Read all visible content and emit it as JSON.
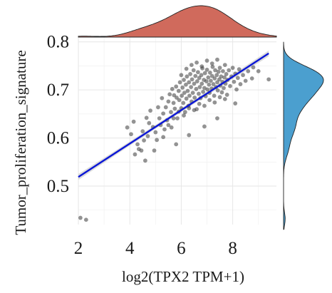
{
  "chart_data": {
    "type": "scatter",
    "xlabel": "log2(TPX2 TPM+1)",
    "ylabel": "Tumor_proliferation_signature",
    "xlim": [
      2,
      9.7
    ],
    "ylim": [
      0.42,
      0.81
    ],
    "x_ticks": [
      2,
      4,
      6,
      8
    ],
    "y_ticks": [
      0.5,
      0.6,
      0.7,
      0.8
    ],
    "grid": true,
    "regression": {
      "start": [
        2,
        0.519
      ],
      "end": [
        9.4,
        0.776
      ],
      "color": "#0a16d6",
      "band": "#d0d0d0"
    },
    "marginal_x": {
      "type": "density",
      "fill": "#d06a5c",
      "peak_x": 6.4
    },
    "marginal_y": {
      "type": "density",
      "fill": "#4b9fcf",
      "peak_y": 0.693
    },
    "point_color": "#3a3a3a",
    "points": [
      [
        2.08,
        0.434
      ],
      [
        2.3,
        0.43
      ],
      [
        3.9,
        0.622
      ],
      [
        4.05,
        0.608
      ],
      [
        4.15,
        0.634
      ],
      [
        4.3,
        0.587
      ],
      [
        4.2,
        0.566
      ],
      [
        4.35,
        0.577
      ],
      [
        4.45,
        0.574
      ],
      [
        4.5,
        0.614
      ],
      [
        4.55,
        0.595
      ],
      [
        4.7,
        0.604
      ],
      [
        4.65,
        0.642
      ],
      [
        4.8,
        0.657
      ],
      [
        4.75,
        0.631
      ],
      [
        4.9,
        0.623
      ],
      [
        4.95,
        0.574
      ],
      [
        5.05,
        0.596
      ],
      [
        5.0,
        0.612
      ],
      [
        5.1,
        0.664
      ],
      [
        5.15,
        0.641
      ],
      [
        5.2,
        0.627
      ],
      [
        5.25,
        0.683
      ],
      [
        5.3,
        0.651
      ],
      [
        5.35,
        0.618
      ],
      [
        5.4,
        0.664
      ],
      [
        5.45,
        0.637
      ],
      [
        5.5,
        0.676
      ],
      [
        5.55,
        0.691
      ],
      [
        5.6,
        0.654
      ],
      [
        5.62,
        0.622
      ],
      [
        5.65,
        0.702
      ],
      [
        5.7,
        0.673
      ],
      [
        5.72,
        0.689
      ],
      [
        5.75,
        0.661
      ],
      [
        5.8,
        0.707
      ],
      [
        5.82,
        0.684
      ],
      [
        5.85,
        0.641
      ],
      [
        5.9,
        0.698
      ],
      [
        5.92,
        0.679
      ],
      [
        5.95,
        0.716
      ],
      [
        6.0,
        0.662
      ],
      [
        6.02,
        0.688
      ],
      [
        6.05,
        0.705
      ],
      [
        6.08,
        0.673
      ],
      [
        6.1,
        0.721
      ],
      [
        6.12,
        0.694
      ],
      [
        6.15,
        0.654
      ],
      [
        6.18,
        0.711
      ],
      [
        6.2,
        0.682
      ],
      [
        6.22,
        0.728
      ],
      [
        6.25,
        0.698
      ],
      [
        6.28,
        0.667
      ],
      [
        6.3,
        0.716
      ],
      [
        6.32,
        0.688
      ],
      [
        6.35,
        0.733
      ],
      [
        6.38,
        0.706
      ],
      [
        6.4,
        0.676
      ],
      [
        6.42,
        0.722
      ],
      [
        6.45,
        0.694
      ],
      [
        6.48,
        0.741
      ],
      [
        6.5,
        0.713
      ],
      [
        6.52,
        0.684
      ],
      [
        6.55,
        0.729
      ],
      [
        6.58,
        0.702
      ],
      [
        6.6,
        0.66
      ],
      [
        6.62,
        0.718
      ],
      [
        6.65,
        0.737
      ],
      [
        6.68,
        0.692
      ],
      [
        6.7,
        0.725
      ],
      [
        6.72,
        0.706
      ],
      [
        6.75,
        0.683
      ],
      [
        6.78,
        0.731
      ],
      [
        6.8,
        0.713
      ],
      [
        6.82,
        0.745
      ],
      [
        6.85,
        0.696
      ],
      [
        6.88,
        0.721
      ],
      [
        6.9,
        0.704
      ],
      [
        6.92,
        0.735
      ],
      [
        6.95,
        0.687
      ],
      [
        6.98,
        0.718
      ],
      [
        7.0,
        0.742
      ],
      [
        7.02,
        0.701
      ],
      [
        7.05,
        0.726
      ],
      [
        7.08,
        0.711
      ],
      [
        7.1,
        0.694
      ],
      [
        7.12,
        0.736
      ],
      [
        7.15,
        0.719
      ],
      [
        7.18,
        0.703
      ],
      [
        7.2,
        0.729
      ],
      [
        7.22,
        0.748
      ],
      [
        7.25,
        0.712
      ],
      [
        7.28,
        0.688
      ],
      [
        7.3,
        0.724
      ],
      [
        7.32,
        0.741
      ],
      [
        7.35,
        0.706
      ],
      [
        7.38,
        0.731
      ],
      [
        7.4,
        0.716
      ],
      [
        7.42,
        0.699
      ],
      [
        7.45,
        0.738
      ],
      [
        7.48,
        0.722
      ],
      [
        7.5,
        0.746
      ],
      [
        7.52,
        0.709
      ],
      [
        7.55,
        0.728
      ],
      [
        7.58,
        0.695
      ],
      [
        7.6,
        0.717
      ],
      [
        7.62,
        0.739
      ],
      [
        7.65,
        0.704
      ],
      [
        7.68,
        0.726
      ],
      [
        7.7,
        0.752
      ],
      [
        7.72,
        0.713
      ],
      [
        7.75,
        0.733
      ],
      [
        7.78,
        0.69
      ],
      [
        7.8,
        0.721
      ],
      [
        7.85,
        0.741
      ],
      [
        7.9,
        0.708
      ],
      [
        7.95,
        0.728
      ],
      [
        8.0,
        0.746
      ],
      [
        8.05,
        0.717
      ],
      [
        8.1,
        0.734
      ],
      [
        8.15,
        0.701
      ],
      [
        8.2,
        0.725
      ],
      [
        8.25,
        0.743
      ],
      [
        8.3,
        0.712
      ],
      [
        8.4,
        0.731
      ],
      [
        8.5,
        0.719
      ],
      [
        8.6,
        0.739
      ],
      [
        8.75,
        0.724
      ],
      [
        9.0,
        0.739
      ],
      [
        9.4,
        0.722
      ],
      [
        5.3,
        0.602
      ],
      [
        5.5,
        0.627
      ],
      [
        5.7,
        0.641
      ],
      [
        5.9,
        0.655
      ],
      [
        6.1,
        0.647
      ],
      [
        6.3,
        0.662
      ],
      [
        6.5,
        0.658
      ],
      [
        6.7,
        0.671
      ],
      [
        6.9,
        0.667
      ],
      [
        7.1,
        0.679
      ],
      [
        7.3,
        0.674
      ],
      [
        7.5,
        0.685
      ],
      [
        7.7,
        0.681
      ],
      [
        6.0,
        0.731
      ],
      [
        6.2,
        0.744
      ],
      [
        6.4,
        0.752
      ],
      [
        6.6,
        0.757
      ],
      [
        6.8,
        0.749
      ],
      [
        7.0,
        0.761
      ],
      [
        7.2,
        0.755
      ],
      [
        7.4,
        0.763
      ],
      [
        4.6,
        0.553
      ],
      [
        5.8,
        0.587
      ],
      [
        6.3,
        0.606
      ],
      [
        6.9,
        0.624
      ],
      [
        7.4,
        0.641
      ],
      [
        8.1,
        0.672
      ],
      [
        8.8,
        0.747
      ]
    ]
  }
}
